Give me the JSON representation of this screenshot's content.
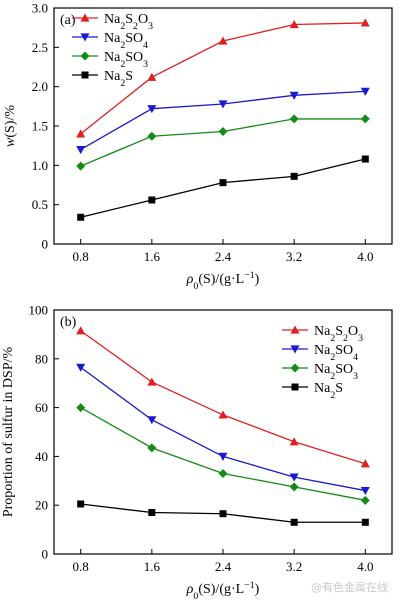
{
  "watermark": "@有色金属在线",
  "chart_data": [
    {
      "type": "line",
      "panel_label": "(a)",
      "xlabel": "ρ0(S)/(g·L−1)",
      "ylabel": "w(S)/%",
      "x": [
        0.8,
        1.6,
        2.4,
        3.2,
        4.0
      ],
      "xticks": [
        "0.8",
        "1.6",
        "2.4",
        "3.2",
        "4.0"
      ],
      "ylim": [
        0,
        3.0
      ],
      "yticks": [
        "0",
        "0.5",
        "1.0",
        "1.5",
        "2.0",
        "2.5",
        "3.0"
      ],
      "legend_position": "top-left",
      "grid": false,
      "series": [
        {
          "name": "Na2S2O3",
          "values": [
            1.4,
            2.12,
            2.58,
            2.79,
            2.81
          ],
          "color": "#e02020",
          "marker": "triangle-up"
        },
        {
          "name": "Na2SO4",
          "values": [
            1.2,
            1.72,
            1.78,
            1.89,
            1.94
          ],
          "color": "#1a1ad0",
          "marker": "triangle-down"
        },
        {
          "name": "Na2SO3",
          "values": [
            0.99,
            1.37,
            1.43,
            1.59,
            1.59
          ],
          "color": "#168a16",
          "marker": "diamond"
        },
        {
          "name": "Na2S",
          "values": [
            0.34,
            0.56,
            0.78,
            0.86,
            1.08
          ],
          "color": "#000000",
          "marker": "square"
        }
      ]
    },
    {
      "type": "line",
      "panel_label": "(b)",
      "xlabel": "ρ0(S)/(g·L−1)",
      "ylabel": "Proportion of sulfur in DSP/%",
      "x": [
        0.8,
        1.6,
        2.4,
        3.2,
        4.0
      ],
      "xticks": [
        "0.8",
        "1.6",
        "2.4",
        "3.2",
        "4.0"
      ],
      "ylim": [
        0,
        100
      ],
      "yticks": [
        "0",
        "20",
        "40",
        "60",
        "80",
        "100"
      ],
      "legend_position": "top-right",
      "grid": false,
      "series": [
        {
          "name": "Na2S2O3",
          "values": [
            91.5,
            70.5,
            57.0,
            46.0,
            37.0
          ],
          "color": "#e02020",
          "marker": "triangle-up"
        },
        {
          "name": "Na2SO4",
          "values": [
            76.5,
            55.0,
            40.0,
            31.5,
            26.0
          ],
          "color": "#1a1ad0",
          "marker": "triangle-down"
        },
        {
          "name": "Na2SO3",
          "values": [
            60.0,
            43.5,
            33.0,
            27.5,
            22.0
          ],
          "color": "#168a16",
          "marker": "diamond"
        },
        {
          "name": "Na2S",
          "values": [
            20.5,
            17.0,
            16.5,
            13.0,
            13.0
          ],
          "color": "#000000",
          "marker": "square"
        }
      ]
    }
  ]
}
